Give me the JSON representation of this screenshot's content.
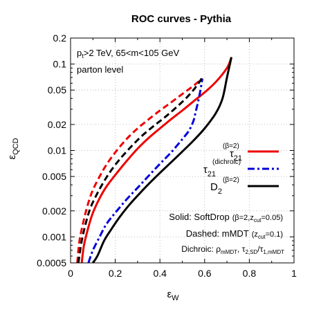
{
  "chart_data": {
    "type": "line",
    "title": "ROC curves - Pythia",
    "xlabel": "ε",
    "xlabel_sub": "W",
    "ylabel": "ε",
    "ylabel_sub": "QCD",
    "xlim": [
      0,
      1
    ],
    "ylim": [
      0.0005,
      0.2
    ],
    "yscale": "log",
    "grid": true,
    "x_ticks": [
      "0",
      "0.2",
      "0.4",
      "0.6",
      "0.8",
      "1"
    ],
    "x_tick_values": [
      0,
      0.2,
      0.4,
      0.6,
      0.8,
      1.0
    ],
    "y_ticks": [
      "0.0005",
      "0.001",
      "0.002",
      "0.005",
      "0.01",
      "0.02",
      "0.05",
      "0.1",
      "0.2"
    ],
    "y_tick_values": [
      0.0005,
      0.001,
      0.002,
      0.005,
      0.01,
      0.02,
      0.05,
      0.1,
      0.2
    ],
    "annotations": {
      "cut_line1": {
        "a": "p",
        "a_sub": "t",
        "b": ">2 TeV, 65<m<105 GeV"
      },
      "cut_line2": "parton level",
      "solid": {
        "a": "Solid: SoftDrop",
        "b": "(β=2,z",
        "b_sub": "cut",
        "c": "=0.05)"
      },
      "dashed": {
        "a": "Dashed: mMDT",
        "b": "(z",
        "b_sub": "cut",
        "c": "=0.1)"
      },
      "dichroic": {
        "a": "Dichroic: ρ",
        "a_sub": "mMDT",
        "b": ", τ",
        "b_sub": "2,SD",
        "c": "/τ",
        "c_sub": "1,mMDT"
      }
    },
    "legend_placement": "center-right",
    "legend": [
      {
        "symbol": "τ",
        "sub": "21",
        "sup": "(β=2)",
        "color": "#ee0000",
        "dash": "solid"
      },
      {
        "symbol": "τ",
        "sub": "21",
        "sup": "(dichroic)",
        "color": "#0000dd",
        "dash": "dashdot"
      },
      {
        "symbol": "D",
        "sub": "2",
        "sup": "(β=2)",
        "color": "#000000",
        "dash": "solid"
      }
    ],
    "series": [
      {
        "style": "tau21-softdrop",
        "color": "#ee0000",
        "dash": "solid",
        "x": [
          0.05,
          0.06,
          0.08,
          0.1,
          0.13,
          0.16,
          0.2,
          0.25,
          0.3,
          0.35,
          0.4,
          0.45,
          0.5,
          0.55,
          0.6,
          0.65,
          0.7,
          0.72
        ],
        "y": [
          0.0005,
          0.0008,
          0.0013,
          0.0019,
          0.0028,
          0.0038,
          0.0052,
          0.0075,
          0.0105,
          0.014,
          0.018,
          0.023,
          0.029,
          0.037,
          0.047,
          0.062,
          0.09,
          0.12
        ]
      },
      {
        "style": "tau21-mmdt",
        "color": "#ee0000",
        "dash": "dashed",
        "x": [
          0.03,
          0.04,
          0.06,
          0.08,
          0.1,
          0.13,
          0.16,
          0.2,
          0.25,
          0.3,
          0.35,
          0.4,
          0.45,
          0.5,
          0.55,
          0.58
        ],
        "y": [
          0.0005,
          0.0009,
          0.0016,
          0.0025,
          0.0035,
          0.005,
          0.0068,
          0.0095,
          0.0135,
          0.018,
          0.023,
          0.029,
          0.036,
          0.045,
          0.056,
          0.065
        ]
      },
      {
        "style": "tau21-dichroic",
        "color": "#0000dd",
        "dash": "dashdot",
        "x": [
          0.08,
          0.1,
          0.13,
          0.16,
          0.2,
          0.25,
          0.3,
          0.35,
          0.4,
          0.45,
          0.5,
          0.53,
          0.55,
          0.56,
          0.57,
          0.58,
          0.59
        ],
        "y": [
          0.0005,
          0.0007,
          0.001,
          0.0014,
          0.0019,
          0.0027,
          0.0037,
          0.0051,
          0.007,
          0.0095,
          0.0135,
          0.017,
          0.022,
          0.028,
          0.036,
          0.048,
          0.068
        ]
      },
      {
        "style": "d2-softdrop",
        "color": "#000000",
        "dash": "solid",
        "x": [
          0.1,
          0.12,
          0.15,
          0.18,
          0.22,
          0.26,
          0.3,
          0.35,
          0.4,
          0.45,
          0.5,
          0.55,
          0.6,
          0.65,
          0.68,
          0.7,
          0.72
        ],
        "y": [
          0.0005,
          0.0006,
          0.0009,
          0.0012,
          0.0017,
          0.0023,
          0.003,
          0.0041,
          0.0055,
          0.0073,
          0.0097,
          0.013,
          0.018,
          0.027,
          0.04,
          0.07,
          0.12
        ]
      },
      {
        "style": "d2-mmdt",
        "color": "#000000",
        "dash": "dashed",
        "x": [
          0.035,
          0.05,
          0.07,
          0.09,
          0.12,
          0.15,
          0.18,
          0.22,
          0.27,
          0.32,
          0.37,
          0.42,
          0.47,
          0.52,
          0.56,
          0.59
        ],
        "y": [
          0.0005,
          0.0009,
          0.0015,
          0.0022,
          0.0032,
          0.0044,
          0.0058,
          0.0079,
          0.011,
          0.0148,
          0.019,
          0.024,
          0.031,
          0.041,
          0.054,
          0.07
        ]
      }
    ]
  }
}
